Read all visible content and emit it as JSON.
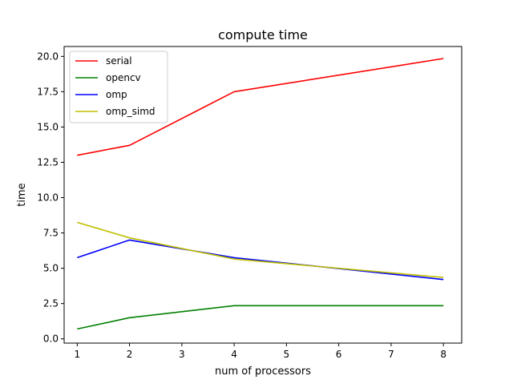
{
  "chart_data": {
    "type": "line",
    "title": "compute time",
    "xlabel": "num of processors",
    "ylabel": "time",
    "x": [
      1,
      2,
      4,
      8
    ],
    "xticks": [
      "1",
      "2",
      "3",
      "4",
      "5",
      "6",
      "7",
      "8"
    ],
    "yticks": [
      "0.0",
      "2.5",
      "5.0",
      "7.5",
      "10.0",
      "12.5",
      "15.0",
      "17.5",
      "20.0"
    ],
    "xlim": [
      0.75,
      8.35
    ],
    "ylim": [
      -0.3,
      20.7
    ],
    "grid": false,
    "legend_position": "top-left",
    "series": [
      {
        "name": "serial",
        "color": "#ff0000",
        "values": [
          13.0,
          13.7,
          17.5,
          19.85
        ]
      },
      {
        "name": "opencv",
        "color": "#008000",
        "values": [
          0.7,
          1.5,
          2.35,
          2.35
        ]
      },
      {
        "name": "omp",
        "color": "#0000ff",
        "values": [
          5.75,
          7.0,
          5.75,
          4.2
        ]
      },
      {
        "name": "omp_simd",
        "color": "#bfbf00",
        "values": [
          8.25,
          7.15,
          5.65,
          4.35
        ]
      }
    ]
  }
}
